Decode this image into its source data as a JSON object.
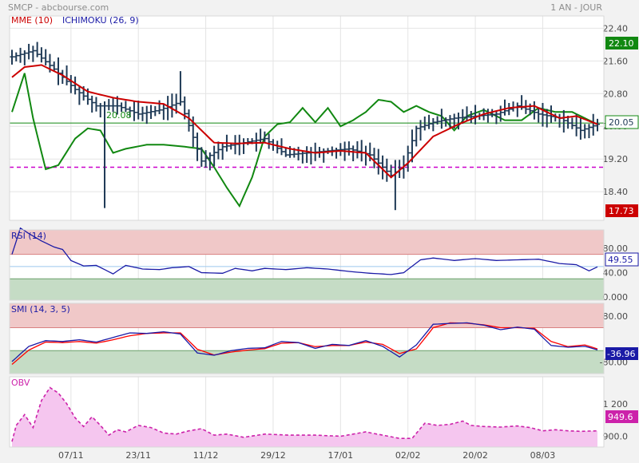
{
  "header": {
    "source": "SMCP - abcbourse.com",
    "period": "1 AN - JOUR"
  },
  "colors": {
    "price": "#1f3a56",
    "mme": "#cc0000",
    "ichimoku": "#118811",
    "rsi": "#1a1aa6",
    "smi_main": "#1a1aa6",
    "smi_signal": "#ff0000",
    "obv": "#cc22aa",
    "obv_fill": "#f5c6ef",
    "overbought": "#f0c8c8",
    "oversold": "#c5dcc5",
    "ref_line": "#118811",
    "low_line": "#cc00cc"
  },
  "legend": {
    "mme": "MME (10)",
    "ichimoku": "ICHIMOKU (26, 9)",
    "rsi": "RSI (14)",
    "smi": "SMI (14, 3, 5)",
    "obv": "OBV"
  },
  "annotation": {
    "line_value": "20.08"
  },
  "badges": {
    "high": "22.10",
    "last": "20.05",
    "low": "17.73",
    "rsi": "49.55",
    "smi": "-36.96",
    "obv": "949.6"
  },
  "chart_data": [
    {
      "type": "ohlc",
      "panel": "price",
      "xlabel": "",
      "ylabel": "",
      "ylim": [
        17.7,
        22.7
      ],
      "yticks": [
        "22.40",
        "21.60",
        "20.80",
        "20.00",
        "19.20",
        "18.40"
      ],
      "xticks": [
        "07/11",
        "23/11",
        "11/12",
        "29/12",
        "17/01",
        "02/02",
        "20/02",
        "08/03"
      ],
      "x_range": [
        "2014-10-17",
        "2015-03-20"
      ],
      "reference_lines": [
        {
          "value": 20.08,
          "color": "green",
          "label": "20.08"
        },
        {
          "value": 19.0,
          "color": "magenta",
          "style": "dashed"
        }
      ],
      "close_anchors": [
        [
          0,
          21.7
        ],
        [
          5,
          21.85
        ],
        [
          10,
          21.4
        ],
        [
          15,
          20.9
        ],
        [
          20,
          20.5
        ],
        [
          25,
          20.5
        ],
        [
          30,
          20.3
        ],
        [
          35,
          20.4
        ],
        [
          40,
          20.6
        ],
        [
          45,
          19.15
        ],
        [
          50,
          19.5
        ],
        [
          55,
          19.6
        ],
        [
          60,
          19.7
        ],
        [
          65,
          19.3
        ],
        [
          70,
          19.35
        ],
        [
          75,
          19.4
        ],
        [
          80,
          19.45
        ],
        [
          85,
          19.3
        ],
        [
          90,
          18.8
        ],
        [
          93,
          19.05
        ],
        [
          96,
          19.95
        ],
        [
          100,
          20.1
        ],
        [
          105,
          20.2
        ],
        [
          110,
          20.25
        ],
        [
          115,
          20.3
        ],
        [
          120,
          20.5
        ],
        [
          125,
          20.3
        ],
        [
          130,
          20.2
        ],
        [
          135,
          19.9
        ],
        [
          139,
          20.05
        ]
      ],
      "series": [
        {
          "name": "MME (10)",
          "anchors": [
            [
              0,
              21.2
            ],
            [
              3,
              21.45
            ],
            [
              7,
              21.5
            ],
            [
              12,
              21.25
            ],
            [
              18,
              20.85
            ],
            [
              24,
              20.7
            ],
            [
              30,
              20.6
            ],
            [
              36,
              20.55
            ],
            [
              42,
              20.2
            ],
            [
              48,
              19.6
            ],
            [
              53,
              19.58
            ],
            [
              60,
              19.6
            ],
            [
              66,
              19.45
            ],
            [
              72,
              19.35
            ],
            [
              78,
              19.4
            ],
            [
              84,
              19.35
            ],
            [
              90,
              18.75
            ],
            [
              94,
              19.1
            ],
            [
              100,
              19.75
            ],
            [
              106,
              20.05
            ],
            [
              112,
              20.3
            ],
            [
              118,
              20.45
            ],
            [
              124,
              20.5
            ],
            [
              130,
              20.2
            ],
            [
              134,
              20.25
            ],
            [
              139,
              20.05
            ]
          ]
        },
        {
          "name": "ICHIMOKU (26, 9)",
          "anchors": [
            [
              0,
              20.35
            ],
            [
              3,
              21.3
            ],
            [
              5,
              20.2
            ],
            [
              8,
              18.95
            ],
            [
              11,
              19.05
            ],
            [
              15,
              19.7
            ],
            [
              18,
              19.95
            ],
            [
              21,
              19.9
            ],
            [
              24,
              19.35
            ],
            [
              27,
              19.45
            ],
            [
              32,
              19.55
            ],
            [
              36,
              19.55
            ],
            [
              41,
              19.5
            ],
            [
              45,
              19.45
            ],
            [
              48,
              19.0
            ],
            [
              51,
              18.5
            ],
            [
              54,
              18.05
            ],
            [
              57,
              18.75
            ],
            [
              60,
              19.75
            ],
            [
              63,
              20.05
            ],
            [
              66,
              20.1
            ],
            [
              69,
              20.45
            ],
            [
              72,
              20.1
            ],
            [
              75,
              20.45
            ],
            [
              78,
              20.0
            ],
            [
              81,
              20.15
            ],
            [
              84,
              20.35
            ],
            [
              87,
              20.65
            ],
            [
              90,
              20.6
            ],
            [
              93,
              20.35
            ],
            [
              96,
              20.5
            ],
            [
              99,
              20.35
            ],
            [
              102,
              20.25
            ],
            [
              105,
              19.9
            ],
            [
              108,
              20.25
            ],
            [
              112,
              20.4
            ],
            [
              117,
              20.15
            ],
            [
              121,
              20.15
            ],
            [
              125,
              20.45
            ],
            [
              129,
              20.35
            ],
            [
              133,
              20.35
            ],
            [
              136,
              20.2
            ],
            [
              139,
              20.05
            ]
          ]
        }
      ]
    },
    {
      "type": "line",
      "panel": "rsi",
      "name": "RSI (14)",
      "ylim": [
        -5,
        110
      ],
      "yticks": [
        "80.00",
        "40.00",
        "0.000"
      ],
      "bands": {
        "overbought": 70,
        "oversold": 30,
        "mid": 50
      },
      "anchors": [
        [
          0,
          70
        ],
        [
          2,
          113
        ],
        [
          4,
          104
        ],
        [
          7,
          92
        ],
        [
          10,
          82
        ],
        [
          12,
          78
        ],
        [
          14,
          60
        ],
        [
          17,
          51
        ],
        [
          20,
          52
        ],
        [
          24,
          38
        ],
        [
          27,
          52
        ],
        [
          31,
          46
        ],
        [
          35,
          45
        ],
        [
          38,
          48
        ],
        [
          42,
          50
        ],
        [
          45,
          40
        ],
        [
          50,
          39
        ],
        [
          53,
          47
        ],
        [
          57,
          43
        ],
        [
          60,
          47
        ],
        [
          65,
          45
        ],
        [
          70,
          48
        ],
        [
          75,
          46
        ],
        [
          80,
          42
        ],
        [
          85,
          39
        ],
        [
          90,
          37
        ],
        [
          93,
          40
        ],
        [
          97,
          61
        ],
        [
          100,
          64
        ],
        [
          105,
          60
        ],
        [
          110,
          63
        ],
        [
          115,
          60
        ],
        [
          120,
          61
        ],
        [
          125,
          62
        ],
        [
          130,
          55
        ],
        [
          134,
          53
        ],
        [
          137,
          43
        ],
        [
          139,
          49.5
        ]
      ]
    },
    {
      "type": "line",
      "panel": "smi",
      "name": "SMI (14, 3, 5)",
      "ylim": [
        -120,
        125
      ],
      "yticks": [
        "80.00",
        "-80.00"
      ],
      "bands": {
        "overbought": 40,
        "oversold": -40
      },
      "series": [
        {
          "name": "SMI",
          "anchors": [
            [
              0,
              -78
            ],
            [
              4,
              -25
            ],
            [
              8,
              -5
            ],
            [
              12,
              -8
            ],
            [
              16,
              -2
            ],
            [
              20,
              -10
            ],
            [
              24,
              6
            ],
            [
              28,
              22
            ],
            [
              32,
              20
            ],
            [
              36,
              26
            ],
            [
              40,
              18
            ],
            [
              44,
              -48
            ],
            [
              48,
              -56
            ],
            [
              52,
              -40
            ],
            [
              56,
              -32
            ],
            [
              60,
              -30
            ],
            [
              64,
              -8
            ],
            [
              68,
              -12
            ],
            [
              72,
              -32
            ],
            [
              76,
              -18
            ],
            [
              80,
              -22
            ],
            [
              84,
              -5
            ],
            [
              88,
              -25
            ],
            [
              92,
              -62
            ],
            [
              96,
              -20
            ],
            [
              100,
              52
            ],
            [
              104,
              55
            ],
            [
              108,
              57
            ],
            [
              112,
              49
            ],
            [
              116,
              33
            ],
            [
              120,
              42
            ],
            [
              124,
              35
            ],
            [
              128,
              -22
            ],
            [
              132,
              -28
            ],
            [
              136,
              -25
            ],
            [
              139,
              -36.96
            ]
          ]
        },
        {
          "name": "Signal",
          "anchors": [
            [
              0,
              -88
            ],
            [
              4,
              -38
            ],
            [
              8,
              -10
            ],
            [
              12,
              -12
            ],
            [
              16,
              -8
            ],
            [
              20,
              -14
            ],
            [
              24,
              -2
            ],
            [
              28,
              12
            ],
            [
              32,
              20
            ],
            [
              36,
              22
            ],
            [
              40,
              22
            ],
            [
              44,
              -35
            ],
            [
              48,
              -55
            ],
            [
              52,
              -45
            ],
            [
              56,
              -38
            ],
            [
              60,
              -33
            ],
            [
              64,
              -14
            ],
            [
              68,
              -12
            ],
            [
              72,
              -26
            ],
            [
              76,
              -22
            ],
            [
              80,
              -22
            ],
            [
              84,
              -10
            ],
            [
              88,
              -18
            ],
            [
              92,
              -50
            ],
            [
              96,
              -34
            ],
            [
              100,
              40
            ],
            [
              104,
              57
            ],
            [
              108,
              56
            ],
            [
              112,
              50
            ],
            [
              116,
              40
            ],
            [
              120,
              40
            ],
            [
              124,
              38
            ],
            [
              128,
              -8
            ],
            [
              132,
              -26
            ],
            [
              136,
              -20
            ],
            [
              139,
              -34
            ]
          ]
        }
      ]
    },
    {
      "type": "area",
      "panel": "obv",
      "name": "OBV",
      "ylim": [
        800,
        1450
      ],
      "yticks": [
        "1 200",
        "900.0"
      ],
      "anchors": [
        [
          0,
          850
        ],
        [
          1,
          1000
        ],
        [
          3,
          1100
        ],
        [
          5,
          980
        ],
        [
          7,
          1230
        ],
        [
          9,
          1350
        ],
        [
          11,
          1300
        ],
        [
          13,
          1200
        ],
        [
          15,
          1070
        ],
        [
          17,
          990
        ],
        [
          19,
          1080
        ],
        [
          21,
          1000
        ],
        [
          23,
          910
        ],
        [
          25,
          960
        ],
        [
          27,
          940
        ],
        [
          30,
          1000
        ],
        [
          33,
          980
        ],
        [
          36,
          930
        ],
        [
          39,
          920
        ],
        [
          42,
          950
        ],
        [
          45,
          970
        ],
        [
          48,
          910
        ],
        [
          51,
          920
        ],
        [
          55,
          890
        ],
        [
          60,
          920
        ],
        [
          66,
          910
        ],
        [
          72,
          910
        ],
        [
          78,
          900
        ],
        [
          84,
          940
        ],
        [
          88,
          910
        ],
        [
          92,
          880
        ],
        [
          95,
          880
        ],
        [
          98,
          1020
        ],
        [
          101,
          1000
        ],
        [
          104,
          1010
        ],
        [
          107,
          1040
        ],
        [
          109,
          1000
        ],
        [
          112,
          990
        ],
        [
          116,
          985
        ],
        [
          120,
          995
        ],
        [
          123,
          980
        ],
        [
          126,
          950
        ],
        [
          129,
          960
        ],
        [
          132,
          950
        ],
        [
          135,
          945
        ],
        [
          139,
          950
        ]
      ]
    }
  ]
}
